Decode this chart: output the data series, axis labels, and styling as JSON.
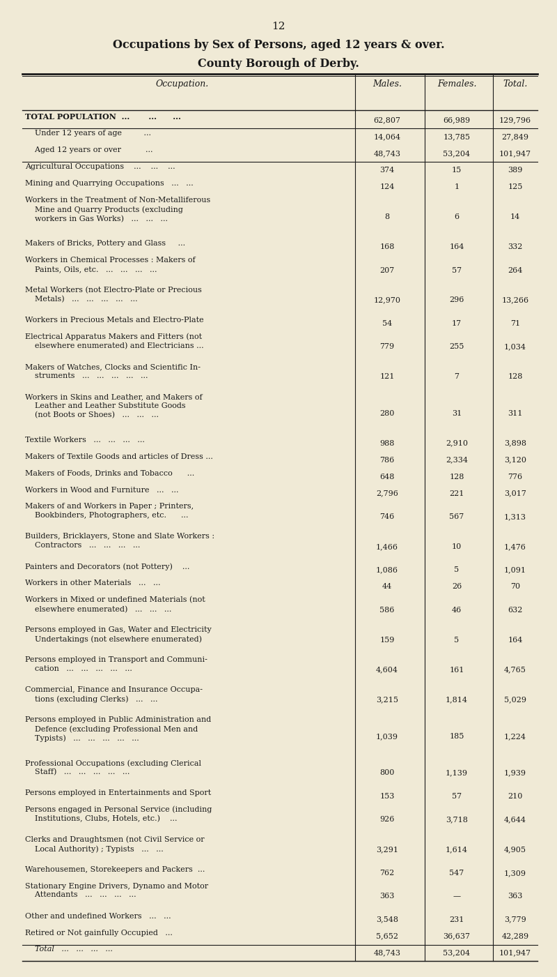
{
  "page_number": "12",
  "title_line1": "Occupations by Sex of Persons, aged 12 years & over.",
  "title_line2": "County Borough of Derby.",
  "col_headers": [
    "Occupation.",
    "Males.",
    "Females.",
    "Total."
  ],
  "bg_color": "#f0ead6",
  "rows": [
    {
      "label": "TOTAL POPULATION  ...       ...      ...",
      "males": "62,807",
      "females": "66,989",
      "total": "129,796",
      "style": "bold",
      "indent": 0,
      "separator_before": true,
      "separator_after": true
    },
    {
      "label": "    Under 12 years of age         ...",
      "males": "14,064",
      "females": "13,785",
      "total": "27,849",
      "style": "normal",
      "indent": 0,
      "separator_before": false,
      "separator_after": false
    },
    {
      "label": "    Aged 12 years or over          ...",
      "males": "48,743",
      "females": "53,204",
      "total": "101,947",
      "style": "normal",
      "indent": 0,
      "separator_before": false,
      "separator_after": true
    },
    {
      "label": "Agricultural Occupations    ...    ...    ...",
      "males": "374",
      "females": "15",
      "total": "389",
      "style": "normal",
      "indent": 0,
      "separator_before": false,
      "separator_after": false
    },
    {
      "label": "Mining and Quarrying Occupations   ...   ...",
      "males": "124",
      "females": "1",
      "total": "125",
      "style": "normal",
      "indent": 0,
      "separator_before": false,
      "separator_after": false
    },
    {
      "label": "Workers in the Treatment of Non-Metalliferous\n    Mine and Quarry Products (excluding\n    workers in Gas Works)   ...   ...   ...",
      "males": "8",
      "females": "6",
      "total": "14",
      "style": "normal",
      "indent": 0,
      "separator_before": false,
      "separator_after": false
    },
    {
      "label": "Makers of Bricks, Pottery and Glass     ...",
      "males": "168",
      "females": "164",
      "total": "332",
      "style": "normal",
      "indent": 0,
      "separator_before": false,
      "separator_after": false
    },
    {
      "label": "Workers in Chemical Processes : Makers of\n    Paints, Oils, etc.   ...   ...   ...   ...",
      "males": "207",
      "females": "57",
      "total": "264",
      "style": "normal",
      "indent": 0,
      "separator_before": false,
      "separator_after": false
    },
    {
      "label": "Metal Workers (not Electro-Plate or Precious\n    Metals)   ...   ...   ...   ...   ...",
      "males": "12,970",
      "females": "296",
      "total": "13,266",
      "style": "normal",
      "indent": 0,
      "separator_before": false,
      "separator_after": false
    },
    {
      "label": "Workers in Precious Metals and Electro-Plate",
      "males": "54",
      "females": "17",
      "total": "71",
      "style": "normal",
      "indent": 0,
      "separator_before": false,
      "separator_after": false
    },
    {
      "label": "Electrical Apparatus Makers and Fitters (not\n    elsewhere enumerated) and Electricians ...",
      "males": "779",
      "females": "255",
      "total": "1,034",
      "style": "normal",
      "indent": 0,
      "separator_before": false,
      "separator_after": false
    },
    {
      "label": "Makers of Watches, Clocks and Scientific In-\n    struments   ...   ...   ...   ...   ...",
      "males": "121",
      "females": "7",
      "total": "128",
      "style": "normal",
      "indent": 0,
      "separator_before": false,
      "separator_after": false
    },
    {
      "label": "Workers in Skins and Leather, and Makers of\n    Leather and Leather Substitute Goods\n    (not Boots or Shoes)   ...   ...   ...",
      "males": "280",
      "females": "31",
      "total": "311",
      "style": "normal",
      "indent": 0,
      "separator_before": false,
      "separator_after": false
    },
    {
      "label": "Textile Workers   ...   ...   ...   ...",
      "males": "988",
      "females": "2,910",
      "total": "3,898",
      "style": "normal",
      "indent": 0,
      "separator_before": false,
      "separator_after": false
    },
    {
      "label": "Makers of Textile Goods and articles of Dress ...",
      "males": "786",
      "females": "2,334",
      "total": "3,120",
      "style": "normal",
      "indent": 0,
      "separator_before": false,
      "separator_after": false
    },
    {
      "label": "Makers of Foods, Drinks and Tobacco      ...",
      "males": "648",
      "females": "128",
      "total": "776",
      "style": "normal",
      "indent": 0,
      "separator_before": false,
      "separator_after": false
    },
    {
      "label": "Workers in Wood and Furniture   ...   ...",
      "males": "2,796",
      "females": "221",
      "total": "3,017",
      "style": "normal",
      "indent": 0,
      "separator_before": false,
      "separator_after": false
    },
    {
      "label": "Makers of and Workers in Paper ; Printers,\n    Bookbinders, Photographers, etc.      ...",
      "males": "746",
      "females": "567",
      "total": "1,313",
      "style": "normal",
      "indent": 0,
      "separator_before": false,
      "separator_after": false
    },
    {
      "label": "Builders, Bricklayers, Stone and Slate Workers :\n    Contractors   ...   ...   ...   ...",
      "males": "1,466",
      "females": "10",
      "total": "1,476",
      "style": "normal",
      "indent": 0,
      "separator_before": false,
      "separator_after": false
    },
    {
      "label": "Painters and Decorators (not Pottery)    ...",
      "males": "1,086",
      "females": "5",
      "total": "1,091",
      "style": "normal",
      "indent": 0,
      "separator_before": false,
      "separator_after": false
    },
    {
      "label": "Workers in other Materials   ...   ...",
      "males": "44",
      "females": "26",
      "total": "70",
      "style": "normal",
      "indent": 0,
      "separator_before": false,
      "separator_after": false
    },
    {
      "label": "Workers in Mixed or undefined Materials (not\n    elsewhere enumerated)   ...   ...   ...",
      "males": "586",
      "females": "46",
      "total": "632",
      "style": "normal",
      "indent": 0,
      "separator_before": false,
      "separator_after": false
    },
    {
      "label": "Persons employed in Gas, Water and Electricity\n    Undertakings (not elsewhere enumerated)",
      "males": "159",
      "females": "5",
      "total": "164",
      "style": "normal",
      "indent": 0,
      "separator_before": false,
      "separator_after": false
    },
    {
      "label": "Persons employed in Transport and Communi-\n    cation   ...   ...   ...   ...   ...",
      "males": "4,604",
      "females": "161",
      "total": "4,765",
      "style": "normal",
      "indent": 0,
      "separator_before": false,
      "separator_after": false
    },
    {
      "label": "Commercial, Finance and Insurance Occupa-\n    tions (excluding Clerks)   ...   ...",
      "males": "3,215",
      "females": "1,814",
      "total": "5,029",
      "style": "normal",
      "indent": 0,
      "separator_before": false,
      "separator_after": false
    },
    {
      "label": "Persons employed in Public Administration and\n    Defence (excluding Professional Men and\n    Typists)   ...   ...   ...   ...   ...",
      "males": "1,039",
      "females": "185",
      "total": "1,224",
      "style": "normal",
      "indent": 0,
      "separator_before": false,
      "separator_after": false
    },
    {
      "label": "Professional Occupations (excluding Clerical\n    Staff)   ...   ...   ...   ...   ...",
      "males": "800",
      "females": "1,139",
      "total": "1,939",
      "style": "normal",
      "indent": 0,
      "separator_before": false,
      "separator_after": false
    },
    {
      "label": "Persons employed in Entertainments and Sport",
      "males": "153",
      "females": "57",
      "total": "210",
      "style": "normal",
      "indent": 0,
      "separator_before": false,
      "separator_after": false
    },
    {
      "label": "Persons engaged in Personal Service (including\n    Institutions, Clubs, Hotels, etc.)    ...",
      "males": "926",
      "females": "3,718",
      "total": "4,644",
      "style": "normal",
      "indent": 0,
      "separator_before": false,
      "separator_after": false
    },
    {
      "label": "Clerks and Draughtsmen (not Civil Service or\n    Local Authority) ; Typists   ...   ...",
      "males": "3,291",
      "females": "1,614",
      "total": "4,905",
      "style": "normal",
      "indent": 0,
      "separator_before": false,
      "separator_after": false
    },
    {
      "label": "Warehousemen, Storekeepers and Packers  ...",
      "males": "762",
      "females": "547",
      "total": "1,309",
      "style": "normal",
      "indent": 0,
      "separator_before": false,
      "separator_after": false
    },
    {
      "label": "Stationary Engine Drivers, Dynamo and Motor\n    Attendants   ...   ...   ...   ...",
      "males": "363",
      "females": "—",
      "total": "363",
      "style": "normal",
      "indent": 0,
      "separator_before": false,
      "separator_after": false
    },
    {
      "label": "Other and undefined Workers   ...   ...",
      "males": "3,548",
      "females": "231",
      "total": "3,779",
      "style": "normal",
      "indent": 0,
      "separator_before": false,
      "separator_after": false
    },
    {
      "label": "Retired or Not gainfully Occupied   ...",
      "males": "5,652",
      "females": "36,637",
      "total": "42,289",
      "style": "normal",
      "indent": 0,
      "separator_before": false,
      "separator_after": true
    },
    {
      "label": "    Total   ...   ...   ...   ...",
      "males": "48,743",
      "females": "53,204",
      "total": "101,947",
      "style": "italic",
      "indent": 0,
      "separator_before": false,
      "separator_after": true
    }
  ]
}
